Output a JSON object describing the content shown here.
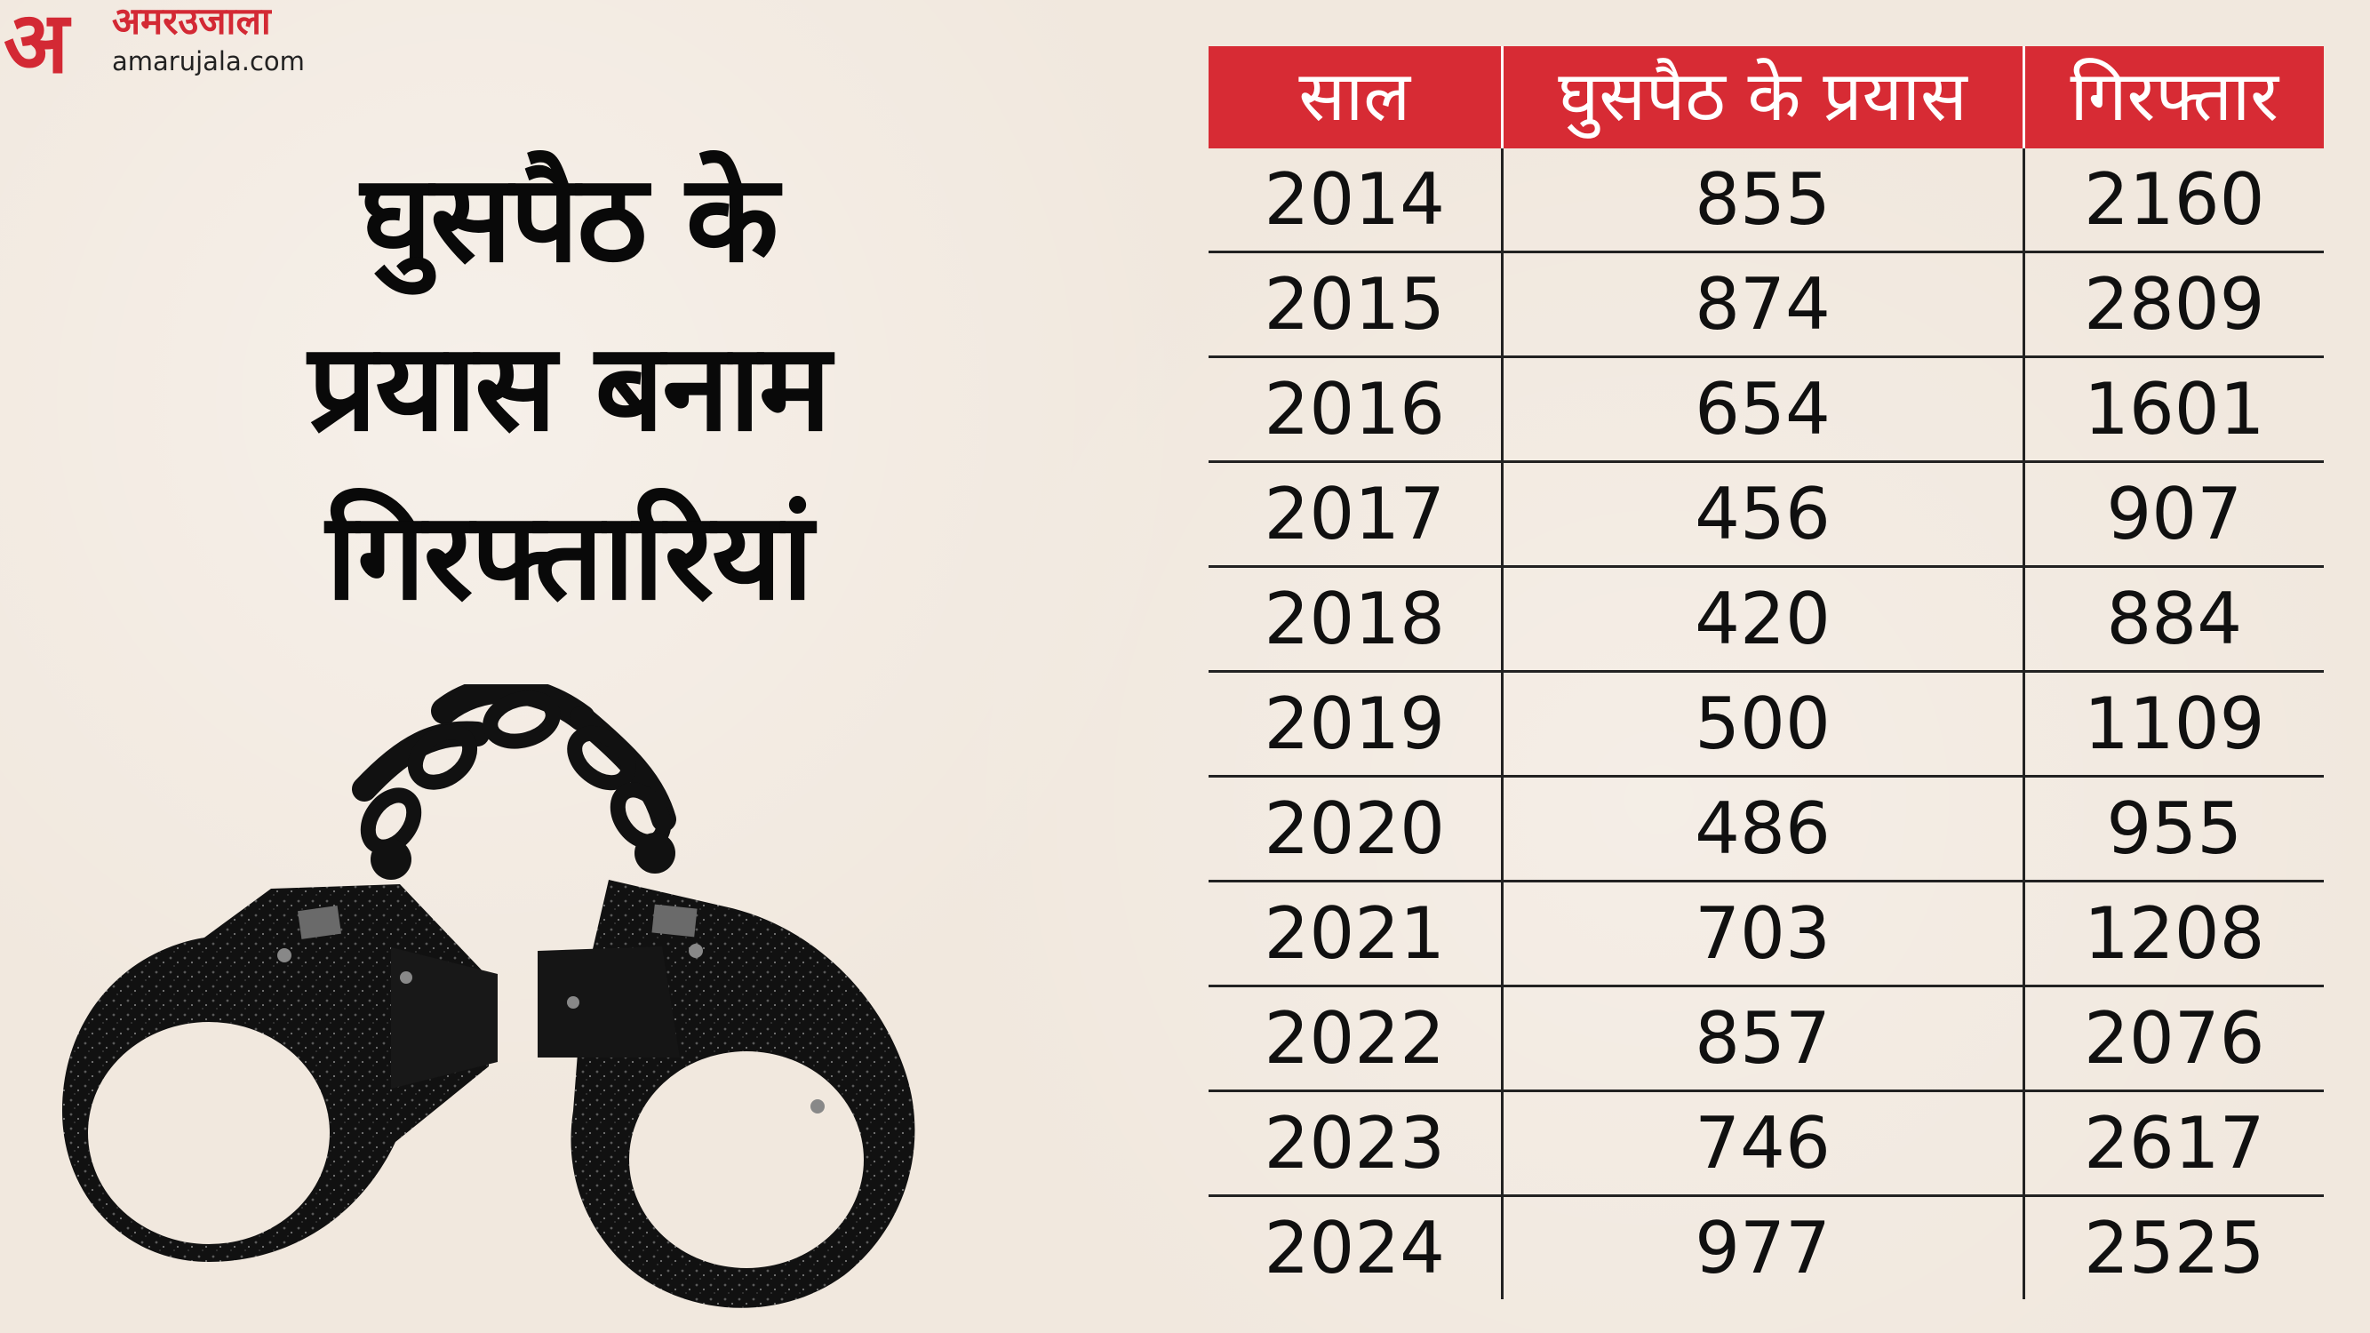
{
  "logo": {
    "mark": "अ",
    "hindi": "अमरउजाला",
    "url": "amarujala.com"
  },
  "headline": {
    "line1": "घुसपैठ के",
    "line2": "प्रयास बनाम",
    "line3": "गिरफ्तारियां"
  },
  "chart_data": {
    "type": "table",
    "columns": [
      "साल",
      "घुसपैठ के प्रयास",
      "गिरफ्तार"
    ],
    "rows": [
      [
        2014,
        855,
        2160
      ],
      [
        2015,
        874,
        2809
      ],
      [
        2016,
        654,
        1601
      ],
      [
        2017,
        456,
        907
      ],
      [
        2018,
        420,
        884
      ],
      [
        2019,
        500,
        1109
      ],
      [
        2020,
        486,
        955
      ],
      [
        2021,
        703,
        1208
      ],
      [
        2022,
        857,
        2076
      ],
      [
        2023,
        746,
        2617
      ],
      [
        2024,
        977,
        2525
      ]
    ],
    "colors": {
      "header": "#d72b34",
      "header_text": "#ffffff",
      "lines": "#222222"
    }
  }
}
